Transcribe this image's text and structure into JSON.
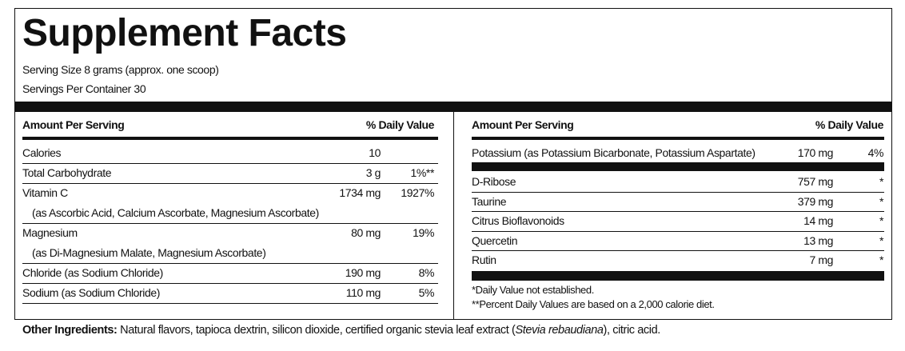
{
  "header": {
    "title": "Supplement Facts",
    "serving_size": "Serving Size 8 grams (approx. one scoop)",
    "servings_per_container": "Servings Per Container 30"
  },
  "left_table": {
    "columns": [
      "Amount Per Serving",
      "% Daily Value"
    ],
    "rows": [
      {
        "name": "Calories",
        "amount": "10"
      },
      {
        "name": "Total Carbohydrate",
        "amount": "3 g",
        "dv": "1%**"
      },
      {
        "name": "Vitamin C",
        "amount": "1734 mg",
        "dv": "1927%",
        "detail": "(as Ascorbic Acid, Calcium Ascorbate, Magnesium Ascorbate)"
      },
      {
        "name": "Magnesium",
        "amount": "80 mg",
        "dv": "19%",
        "detail": "(as Di-Magnesium Malate, Magnesium Ascorbate)"
      },
      {
        "name": "Chloride (as Sodium Chloride)",
        "amount": "190 mg",
        "dv": "8%"
      },
      {
        "name": "Sodium (as Sodium Chloride)",
        "amount": "110 mg",
        "dv": "5%"
      }
    ]
  },
  "right_table": {
    "columns": [
      "Amount Per Serving",
      "% Daily Value"
    ],
    "top_row": {
      "name": "Potassium (as Potassium Bicarbonate, Potassium Aspartate)",
      "amount": "170 mg",
      "dv": "4%"
    },
    "rows": [
      {
        "name": "D-Ribose",
        "amount": "757 mg",
        "dv": "*"
      },
      {
        "name": "Taurine",
        "amount": "379 mg",
        "dv": "*"
      },
      {
        "name": "Citrus Bioflavonoids",
        "amount": "14 mg",
        "dv": "*"
      },
      {
        "name": "Quercetin",
        "amount": "13 mg",
        "dv": "*"
      },
      {
        "name": "Rutin",
        "amount": "7 mg",
        "dv": "*"
      }
    ],
    "footnotes": [
      "*Daily Value not established.",
      "**Percent Daily Values are based on a 2,000 calorie diet."
    ]
  },
  "other_ingredients": {
    "label": "Other Ingredients:",
    "text": "Natural flavors, tapioca dextrin, silicon dioxide, certified organic stevia leaf extract (",
    "italic": "Stevia rebaudiana",
    "end": "), citric acid."
  }
}
